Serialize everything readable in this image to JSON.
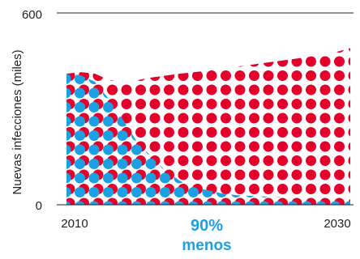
{
  "chart_data": {
    "type": "area",
    "title": "",
    "xlabel": "",
    "ylabel": "Nuevas infecciones (miles)",
    "ylim": [
      0,
      600
    ],
    "xlim": [
      2010,
      2030
    ],
    "yticks": [
      0,
      600
    ],
    "xtick_labels": [
      "2010",
      "2030"
    ],
    "grid": false,
    "legend": "none",
    "series": [
      {
        "color": "#e4002b",
        "x": [
          2010,
          2011,
          2012,
          2013,
          2014,
          2015,
          2016,
          2017,
          2018,
          2019,
          2020,
          2021,
          2022,
          2023,
          2024,
          2025,
          2026,
          2027,
          2028,
          2029,
          2030
        ],
        "values": [
          410,
          415,
          410,
          390,
          385,
          390,
          398,
          404,
          410,
          415,
          420,
          425,
          432,
          438,
          444,
          450,
          456,
          462,
          470,
          478,
          490
        ]
      },
      {
        "color": "#1ba1e2",
        "x": [
          2010,
          2011,
          2012,
          2013,
          2014,
          2015,
          2016,
          2017,
          2018,
          2019,
          2020,
          2021,
          2022,
          2023,
          2024,
          2025,
          2026,
          2027,
          2028,
          2029,
          2030
        ],
        "values": [
          410,
          405,
          385,
          330,
          265,
          195,
          150,
          105,
          75,
          55,
          45,
          35,
          30,
          28,
          26,
          24,
          22,
          20,
          18,
          16,
          14
        ]
      }
    ],
    "annotation": {
      "line1": "90%",
      "line2": "menos",
      "color": "#1ba1e2"
    }
  }
}
